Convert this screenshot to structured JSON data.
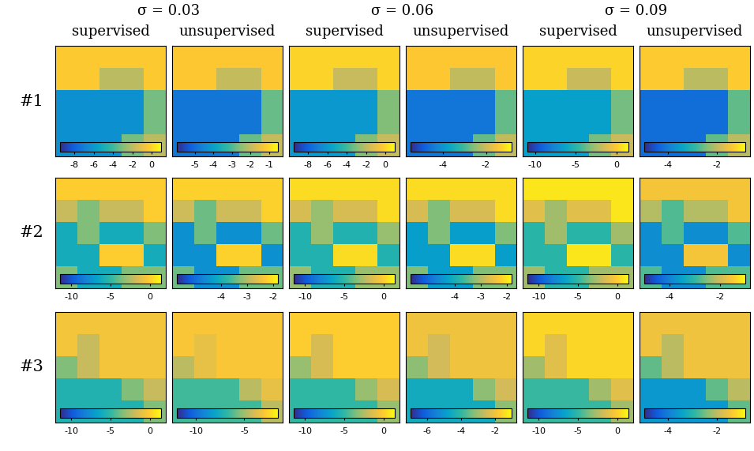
{
  "chart_data": {
    "type": "heatmap_grid",
    "column_titles": [
      "σ = 0.03",
      "σ = 0.06",
      "σ = 0.09"
    ],
    "methods": [
      "supervised",
      "unsupervised"
    ],
    "rows": [
      {
        "label": "#1",
        "panels": [
          {
            "colorbar_range": [
              -9.5,
              1
            ],
            "colorbar_ticks": [
              -8,
              -6,
              -4,
              -2,
              0
            ],
            "cells": [
              [
                -0.3,
                -0.3,
                -0.3,
                -0.3,
                -0.3
              ],
              [
                -0.3,
                -0.3,
                -2,
                -2,
                -0.3
              ],
              [
                -6.3,
                -6.3,
                -6.3,
                -6.3,
                -3.2
              ],
              [
                -6.3,
                -6.3,
                -6.3,
                -6.3,
                -3.2
              ],
              [
                -6.3,
                -6.3,
                -6.3,
                -3.2,
                -2
              ]
            ]
          },
          {
            "colorbar_range": [
              -6,
              -0.5
            ],
            "colorbar_ticks": [
              -5,
              -4,
              -3,
              -2,
              -1
            ],
            "cells": [
              [
                -1.2,
                -1.2,
                -1.2,
                -1.2,
                -1.2
              ],
              [
                -1.2,
                -1.2,
                -2,
                -2,
                -1.2
              ],
              [
                -4.8,
                -4.8,
                -4.8,
                -4.8,
                -2.8
              ],
              [
                -4.8,
                -4.8,
                -4.8,
                -4.8,
                -2.8
              ],
              [
                -4.8,
                -4.8,
                -4.8,
                -2.8,
                -2
              ]
            ]
          },
          {
            "colorbar_range": [
              -9.5,
              1
            ],
            "colorbar_ticks": [
              -8,
              -6,
              -4,
              -2,
              0
            ],
            "cells": [
              [
                0,
                0,
                0,
                0,
                0
              ],
              [
                0,
                0,
                -1.8,
                -1.8,
                0
              ],
              [
                -6,
                -6,
                -6,
                -6,
                -3
              ],
              [
                -6,
                -6,
                -6,
                -6,
                -3
              ],
              [
                -6,
                -6,
                -6,
                -3,
                -1.8
              ]
            ]
          },
          {
            "colorbar_range": [
              -5.5,
              -0.8
            ],
            "colorbar_ticks": [
              -4,
              -2
            ],
            "cells": [
              [
                -1.4,
                -1.4,
                -1.4,
                -1.4,
                -1.4
              ],
              [
                -1.4,
                -1.4,
                -2.1,
                -2.1,
                -1.4
              ],
              [
                -4.5,
                -4.5,
                -4.5,
                -4.5,
                -2.8
              ],
              [
                -4.5,
                -4.5,
                -4.5,
                -4.5,
                -2.8
              ],
              [
                -4.5,
                -4.5,
                -4.5,
                -2.8,
                -2.1
              ]
            ]
          },
          {
            "colorbar_range": [
              -11,
              1.5
            ],
            "colorbar_ticks": [
              -10,
              -5,
              0
            ],
            "cells": [
              [
                0.3,
                0.3,
                0.3,
                0.3,
                0.3
              ],
              [
                0.3,
                0.3,
                -1.8,
                -1.8,
                0.3
              ],
              [
                -6.5,
                -6.5,
                -6.5,
                -6.5,
                -3.5
              ],
              [
                -6.5,
                -6.5,
                -6.5,
                -6.5,
                -3.5
              ],
              [
                -6.5,
                -6.5,
                -6.5,
                -3.5,
                -1.8
              ]
            ]
          },
          {
            "colorbar_range": [
              -5,
              -0.8
            ],
            "colorbar_ticks": [
              -4,
              -2
            ],
            "cells": [
              [
                -1.3,
                -1.3,
                -1.3,
                -1.3,
                -1.3
              ],
              [
                -1.3,
                -1.3,
                -2,
                -2,
                -1.3
              ],
              [
                -4.2,
                -4.2,
                -4.2,
                -4.2,
                -2.6
              ],
              [
                -4.2,
                -4.2,
                -4.2,
                -4.2,
                -2.6
              ],
              [
                -4.2,
                -4.2,
                -4.2,
                -2.6,
                -2
              ]
            ]
          }
        ]
      },
      {
        "label": "#2",
        "panels": [
          {
            "colorbar_range": [
              -11.5,
              1.5
            ],
            "colorbar_ticks": [
              -10,
              -5,
              0
            ],
            "cells": [
              [
                0,
                0,
                0,
                0,
                0
              ],
              [
                -2,
                -3.5,
                -2,
                -2,
                0
              ],
              [
                -6,
                -3.5,
                -6,
                -6,
                -3.5
              ],
              [
                -6,
                -6,
                0,
                0,
                -6
              ],
              [
                -3.5,
                -6,
                -6,
                -3.5,
                -3.5
              ]
            ]
          },
          {
            "colorbar_range": [
              -5.7,
              -1.8
            ],
            "colorbar_ticks": [
              -4,
              -3,
              -2
            ],
            "cells": [
              [
                -2.2,
                -2.2,
                -2.2,
                -2.2,
                -2.2
              ],
              [
                -2.8,
                -3.4,
                -2.8,
                -2.8,
                -2.2
              ],
              [
                -4.5,
                -3.4,
                -4.5,
                -4.5,
                -3.4
              ],
              [
                -4.5,
                -4.5,
                -2.2,
                -2.2,
                -4.5
              ],
              [
                -3.4,
                -4.5,
                -4.5,
                -3.4,
                -3.4
              ]
            ]
          },
          {
            "colorbar_range": [
              -11.5,
              1.5
            ],
            "colorbar_ticks": [
              -10,
              -5,
              0
            ],
            "cells": [
              [
                0.5,
                0.5,
                0.5,
                0.5,
                0.5
              ],
              [
                -1.5,
                -3,
                -1.5,
                -1.5,
                0.5
              ],
              [
                -5.5,
                -3,
                -5.5,
                -5.5,
                -3
              ],
              [
                -5.5,
                -5.5,
                0.5,
                0.5,
                -5.5
              ],
              [
                -3,
                -5.5,
                -5.5,
                -3,
                -3
              ]
            ]
          },
          {
            "colorbar_range": [
              -5.7,
              -1.8
            ],
            "colorbar_ticks": [
              -4,
              -3,
              -2
            ],
            "cells": [
              [
                -2.1,
                -2.1,
                -2.1,
                -2.1,
                -2.1
              ],
              [
                -2.7,
                -3.3,
                -2.7,
                -2.7,
                -2.1
              ],
              [
                -4.3,
                -3.3,
                -4.3,
                -4.3,
                -3.3
              ],
              [
                -4.3,
                -4.3,
                -2.1,
                -2.1,
                -4.3
              ],
              [
                -3.3,
                -4.3,
                -4.3,
                -3.3,
                -3.3
              ]
            ]
          },
          {
            "colorbar_range": [
              -11.5,
              1.5
            ],
            "colorbar_ticks": [
              -10,
              -5,
              0
            ],
            "cells": [
              [
                0.8,
                0.8,
                0.8,
                0.8,
                0.8
              ],
              [
                -1.2,
                -2.8,
                -1.2,
                -1.2,
                0.8
              ],
              [
                -5.2,
                -2.8,
                -5.2,
                -5.2,
                -2.8
              ],
              [
                -5.2,
                -5.2,
                0.8,
                0.8,
                -5.2
              ],
              [
                -2.8,
                -5.2,
                -5.2,
                -2.8,
                -2.8
              ]
            ]
          },
          {
            "colorbar_range": [
              -5,
              -1
            ],
            "colorbar_ticks": [
              -4,
              -2
            ],
            "cells": [
              [
                -1.6,
                -1.6,
                -1.6,
                -1.6,
                -1.6
              ],
              [
                -2.2,
                -2.8,
                -2.2,
                -2.2,
                -1.6
              ],
              [
                -3.8,
                -2.8,
                -3.8,
                -3.8,
                -2.8
              ],
              [
                -3.8,
                -3.8,
                -1.6,
                -1.6,
                -3.8
              ],
              [
                -2.8,
                -3.8,
                -3.8,
                -2.8,
                -2.8
              ]
            ]
          }
        ]
      },
      {
        "label": "#3",
        "panels": [
          {
            "colorbar_range": [
              -11.5,
              1.5
            ],
            "colorbar_ticks": [
              -10,
              -5,
              0
            ],
            "cells": [
              [
                -0.5,
                -0.5,
                -0.5,
                -0.5,
                -0.5
              ],
              [
                -0.5,
                -2,
                -0.5,
                -0.5,
                -0.5
              ],
              [
                -3.5,
                -2,
                -0.5,
                -0.5,
                -0.5
              ],
              [
                -5.5,
                -5.5,
                -5.5,
                -3.5,
                -2
              ],
              [
                -5.5,
                -5.5,
                -5.5,
                -5.5,
                -3.5
              ]
            ]
          },
          {
            "colorbar_range": [
              -12,
              -1.5
            ],
            "colorbar_ticks": [
              -10,
              -5
            ],
            "cells": [
              [
                -3,
                -3,
                -3,
                -3,
                -3
              ],
              [
                -3,
                -3.5,
                -3,
                -3,
                -3
              ],
              [
                -4.5,
                -3.5,
                -3,
                -3,
                -3
              ],
              [
                -6.5,
                -6.5,
                -6.5,
                -4.5,
                -3.5
              ],
              [
                -6.5,
                -6.5,
                -6.5,
                -6.5,
                -4.5
              ]
            ]
          },
          {
            "colorbar_range": [
              -11.5,
              1.5
            ],
            "colorbar_ticks": [
              -10,
              -5,
              0
            ],
            "cells": [
              [
                0,
                0,
                0,
                0,
                0
              ],
              [
                0,
                -1.5,
                0,
                0,
                0
              ],
              [
                -3,
                -1.5,
                0,
                0,
                0
              ],
              [
                -5,
                -5,
                -5,
                -3,
                -1.5
              ],
              [
                -5,
                -5,
                -5,
                -5,
                -3
              ]
            ]
          },
          {
            "colorbar_range": [
              -7,
              -1
            ],
            "colorbar_ticks": [
              -6,
              -4,
              -2
            ],
            "cells": [
              [
                -2,
                -2,
                -2,
                -2,
                -2
              ],
              [
                -2,
                -2.5,
                -2,
                -2,
                -2
              ],
              [
                -3.2,
                -2.5,
                -2,
                -2,
                -2
              ],
              [
                -4.5,
                -4.5,
                -4.5,
                -3.2,
                -2.5
              ],
              [
                -4.5,
                -4.5,
                -4.5,
                -4.5,
                -3.2
              ]
            ]
          },
          {
            "colorbar_range": [
              -11.5,
              1.5
            ],
            "colorbar_ticks": [
              -10,
              -5,
              0
            ],
            "cells": [
              [
                0.3,
                0.3,
                0.3,
                0.3,
                0.3
              ],
              [
                0.3,
                -1.2,
                0.3,
                0.3,
                0.3
              ],
              [
                -2.8,
                -1.2,
                0.3,
                0.3,
                0.3
              ],
              [
                -4.8,
                -4.8,
                -4.8,
                -2.8,
                -1.2
              ],
              [
                -4.8,
                -4.8,
                -4.8,
                -4.8,
                -2.8
              ]
            ]
          },
          {
            "colorbar_range": [
              -5,
              -0.8
            ],
            "colorbar_ticks": [
              -4,
              -2
            ],
            "cells": [
              [
                -1.5,
                -1.5,
                -1.5,
                -1.5,
                -1.5
              ],
              [
                -1.5,
                -2,
                -1.5,
                -1.5,
                -1.5
              ],
              [
                -2.6,
                -2,
                -1.5,
                -1.5,
                -1.5
              ],
              [
                -3.6,
                -3.6,
                -3.6,
                -2.6,
                -2
              ],
              [
                -3.6,
                -3.6,
                -3.6,
                -3.6,
                -2.6
              ]
            ]
          }
        ]
      }
    ]
  }
}
